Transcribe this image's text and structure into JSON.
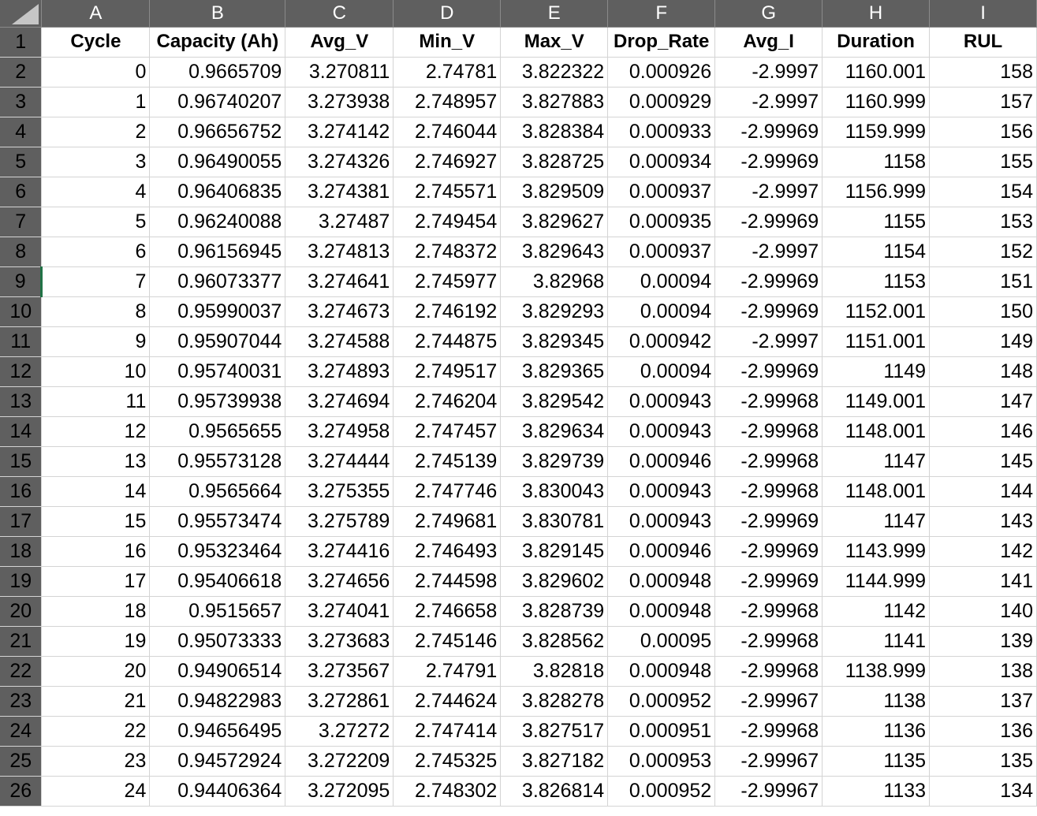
{
  "columns": [
    "A",
    "B",
    "C",
    "D",
    "E",
    "F",
    "G",
    "H",
    "I"
  ],
  "header_row_number": "1",
  "headers": [
    "Cycle",
    "Capacity (Ah)",
    "Avg_V",
    "Min_V",
    "Max_V",
    "Drop_Rate",
    "Avg_I",
    "Duration",
    "RUL"
  ],
  "selected_row_header": "9",
  "rows": [
    {
      "n": "2",
      "v": [
        "0",
        "0.9665709",
        "3.270811",
        "2.74781",
        "3.822322",
        "0.000926",
        "-2.9997",
        "1160.001",
        "158"
      ]
    },
    {
      "n": "3",
      "v": [
        "1",
        "0.96740207",
        "3.273938",
        "2.748957",
        "3.827883",
        "0.000929",
        "-2.9997",
        "1160.999",
        "157"
      ]
    },
    {
      "n": "4",
      "v": [
        "2",
        "0.96656752",
        "3.274142",
        "2.746044",
        "3.828384",
        "0.000933",
        "-2.99969",
        "1159.999",
        "156"
      ]
    },
    {
      "n": "5",
      "v": [
        "3",
        "0.96490055",
        "3.274326",
        "2.746927",
        "3.828725",
        "0.000934",
        "-2.99969",
        "1158",
        "155"
      ]
    },
    {
      "n": "6",
      "v": [
        "4",
        "0.96406835",
        "3.274381",
        "2.745571",
        "3.829509",
        "0.000937",
        "-2.9997",
        "1156.999",
        "154"
      ]
    },
    {
      "n": "7",
      "v": [
        "5",
        "0.96240088",
        "3.27487",
        "2.749454",
        "3.829627",
        "0.000935",
        "-2.99969",
        "1155",
        "153"
      ]
    },
    {
      "n": "8",
      "v": [
        "6",
        "0.96156945",
        "3.274813",
        "2.748372",
        "3.829643",
        "0.000937",
        "-2.9997",
        "1154",
        "152"
      ]
    },
    {
      "n": "9",
      "v": [
        "7",
        "0.96073377",
        "3.274641",
        "2.745977",
        "3.82968",
        "0.00094",
        "-2.99969",
        "1153",
        "151"
      ]
    },
    {
      "n": "10",
      "v": [
        "8",
        "0.95990037",
        "3.274673",
        "2.746192",
        "3.829293",
        "0.00094",
        "-2.99969",
        "1152.001",
        "150"
      ]
    },
    {
      "n": "11",
      "v": [
        "9",
        "0.95907044",
        "3.274588",
        "2.744875",
        "3.829345",
        "0.000942",
        "-2.9997",
        "1151.001",
        "149"
      ]
    },
    {
      "n": "12",
      "v": [
        "10",
        "0.95740031",
        "3.274893",
        "2.749517",
        "3.829365",
        "0.00094",
        "-2.99969",
        "1149",
        "148"
      ]
    },
    {
      "n": "13",
      "v": [
        "11",
        "0.95739938",
        "3.274694",
        "2.746204",
        "3.829542",
        "0.000943",
        "-2.99968",
        "1149.001",
        "147"
      ]
    },
    {
      "n": "14",
      "v": [
        "12",
        "0.9565655",
        "3.274958",
        "2.747457",
        "3.829634",
        "0.000943",
        "-2.99968",
        "1148.001",
        "146"
      ]
    },
    {
      "n": "15",
      "v": [
        "13",
        "0.95573128",
        "3.274444",
        "2.745139",
        "3.829739",
        "0.000946",
        "-2.99968",
        "1147",
        "145"
      ]
    },
    {
      "n": "16",
      "v": [
        "14",
        "0.9565664",
        "3.275355",
        "2.747746",
        "3.830043",
        "0.000943",
        "-2.99968",
        "1148.001",
        "144"
      ]
    },
    {
      "n": "17",
      "v": [
        "15",
        "0.95573474",
        "3.275789",
        "2.749681",
        "3.830781",
        "0.000943",
        "-2.99969",
        "1147",
        "143"
      ]
    },
    {
      "n": "18",
      "v": [
        "16",
        "0.95323464",
        "3.274416",
        "2.746493",
        "3.829145",
        "0.000946",
        "-2.99969",
        "1143.999",
        "142"
      ]
    },
    {
      "n": "19",
      "v": [
        "17",
        "0.95406618",
        "3.274656",
        "2.744598",
        "3.829602",
        "0.000948",
        "-2.99969",
        "1144.999",
        "141"
      ]
    },
    {
      "n": "20",
      "v": [
        "18",
        "0.9515657",
        "3.274041",
        "2.746658",
        "3.828739",
        "0.000948",
        "-2.99968",
        "1142",
        "140"
      ]
    },
    {
      "n": "21",
      "v": [
        "19",
        "0.95073333",
        "3.273683",
        "2.745146",
        "3.828562",
        "0.00095",
        "-2.99968",
        "1141",
        "139"
      ]
    },
    {
      "n": "22",
      "v": [
        "20",
        "0.94906514",
        "3.273567",
        "2.74791",
        "3.82818",
        "0.000948",
        "-2.99968",
        "1138.999",
        "138"
      ]
    },
    {
      "n": "23",
      "v": [
        "21",
        "0.94822983",
        "3.272861",
        "2.744624",
        "3.828278",
        "0.000952",
        "-2.99967",
        "1138",
        "137"
      ]
    },
    {
      "n": "24",
      "v": [
        "22",
        "0.94656495",
        "3.27272",
        "2.747414",
        "3.827517",
        "0.000951",
        "-2.99968",
        "1136",
        "136"
      ]
    },
    {
      "n": "25",
      "v": [
        "23",
        "0.94572924",
        "3.272209",
        "2.745325",
        "3.827182",
        "0.000953",
        "-2.99967",
        "1135",
        "135"
      ]
    },
    {
      "n": "26",
      "v": [
        "24",
        "0.94406364",
        "3.272095",
        "2.748302",
        "3.826814",
        "0.000952",
        "-2.99967",
        "1133",
        "134"
      ]
    }
  ],
  "colors": {
    "header_bg": "#5f5f5f",
    "header_text": "#ffffff",
    "gridline": "#d4d4d4",
    "selection_accent": "#217346"
  }
}
